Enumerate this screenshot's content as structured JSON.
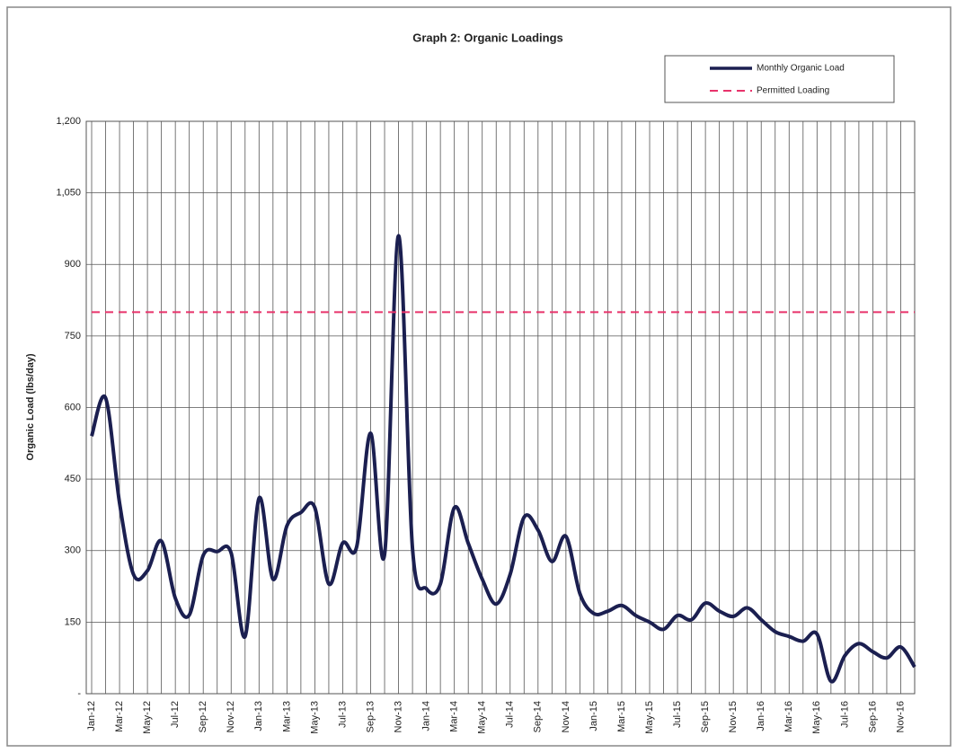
{
  "chart_data": {
    "type": "line",
    "title": "Graph 2:  Organic Loadings",
    "y_label": "Organic Load (lbs/day)",
    "categories": [
      "Jan-12",
      null,
      "Mar-12",
      null,
      "May-12",
      null,
      "Jul-12",
      null,
      "Sep-12",
      null,
      "Nov-12",
      null,
      "Jan-13",
      null,
      "Mar-13",
      null,
      "May-13",
      null,
      "Jul-13",
      null,
      "Sep-13",
      null,
      "Nov-13",
      null,
      "Jan-14",
      null,
      "Mar-14",
      null,
      "May-14",
      null,
      "Jul-14",
      null,
      "Sep-14",
      null,
      "Nov-14",
      null,
      "Jan-15",
      null,
      "Mar-15",
      null,
      "May-15",
      null,
      "Jul-15",
      null,
      "Sep-15",
      null,
      "Nov-15",
      null,
      "Jan-16",
      null,
      "Mar-16",
      null,
      "May-16",
      null,
      "Jul-16",
      null,
      "Sep-16",
      null,
      "Nov-16",
      null
    ],
    "series": [
      {
        "name": "Monthly Organic Load",
        "color": "#1b1f50",
        "dashed": false,
        "smooth": true,
        "values": [
          540,
          620,
          400,
          250,
          258,
          320,
          200,
          165,
          290,
          298,
          295,
          120,
          410,
          240,
          352,
          380,
          390,
          230,
          316,
          308,
          546,
          292,
          960,
          305,
          220,
          230,
          390,
          315,
          240,
          188,
          250,
          370,
          343,
          277,
          330,
          210,
          168,
          173,
          185,
          164,
          150,
          135,
          164,
          155,
          190,
          173,
          162,
          180,
          155,
          130,
          120,
          110,
          125,
          26,
          80,
          105,
          88,
          75,
          98,
          56
        ]
      },
      {
        "name": "Permitted Loading",
        "color": "#e8336b",
        "dashed": true,
        "smooth": false,
        "values": [
          800,
          800,
          800,
          800,
          800,
          800,
          800,
          800,
          800,
          800,
          800,
          800,
          800,
          800,
          800,
          800,
          800,
          800,
          800,
          800,
          800,
          800,
          800,
          800,
          800,
          800,
          800,
          800,
          800,
          800,
          800,
          800,
          800,
          800,
          800,
          800,
          800,
          800,
          800,
          800,
          800,
          800,
          800,
          800,
          800,
          800,
          800,
          800,
          800,
          800,
          800,
          800,
          800,
          800,
          800,
          800,
          800,
          800,
          800,
          800
        ]
      }
    ],
    "ylim": [
      0,
      1200
    ],
    "yticks": [
      {
        "value": 0,
        "label": "-"
      },
      150,
      300,
      450,
      600,
      750,
      900,
      {
        "value": 1050,
        "label": "1,050"
      },
      {
        "value": 1200,
        "label": "1,200"
      }
    ],
    "grid": true,
    "legend": "upper right"
  }
}
